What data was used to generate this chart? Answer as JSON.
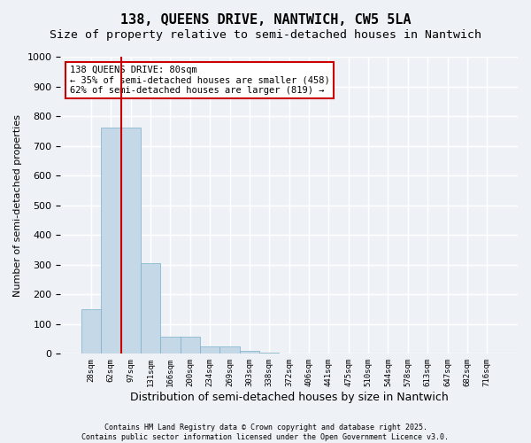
{
  "title_line1": "138, QUEENS DRIVE, NANTWICH, CW5 5LA",
  "title_line2": "Size of property relative to semi-detached houses in Nantwich",
  "xlabel": "Distribution of semi-detached houses by size in Nantwich",
  "ylabel": "Number of semi-detached properties",
  "bin_labels": [
    "28sqm",
    "62sqm",
    "97sqm",
    "131sqm",
    "166sqm",
    "200sqm",
    "234sqm",
    "269sqm",
    "303sqm",
    "338sqm",
    "372sqm",
    "406sqm",
    "441sqm",
    "475sqm",
    "510sqm",
    "544sqm",
    "578sqm",
    "613sqm",
    "647sqm",
    "682sqm",
    "716sqm"
  ],
  "bar_values": [
    150,
    760,
    760,
    305,
    57,
    57,
    25,
    25,
    10,
    5,
    0,
    0,
    0,
    0,
    0,
    0,
    0,
    0,
    0,
    0,
    0
  ],
  "bar_color": "#c5d8e8",
  "bar_edge_color": "#7aafc8",
  "red_line_x": 1.5,
  "annotation_title": "138 QUEENS DRIVE: 80sqm",
  "annotation_line1": "← 35% of semi-detached houses are smaller (458)",
  "annotation_line2": "62% of semi-detached houses are larger (819) →",
  "annotation_box_color": "#ffffff",
  "annotation_box_edge": "#cc0000",
  "red_line_color": "#cc0000",
  "footer": "Contains HM Land Registry data © Crown copyright and database right 2025.\nContains public sector information licensed under the Open Government Licence v3.0.",
  "ylim": [
    0,
    1000
  ],
  "yticks": [
    0,
    100,
    200,
    300,
    400,
    500,
    600,
    700,
    800,
    900,
    1000
  ],
  "background_color": "#eef2f7",
  "grid_color": "#ffffff",
  "title_fontsize": 11,
  "subtitle_fontsize": 9.5
}
